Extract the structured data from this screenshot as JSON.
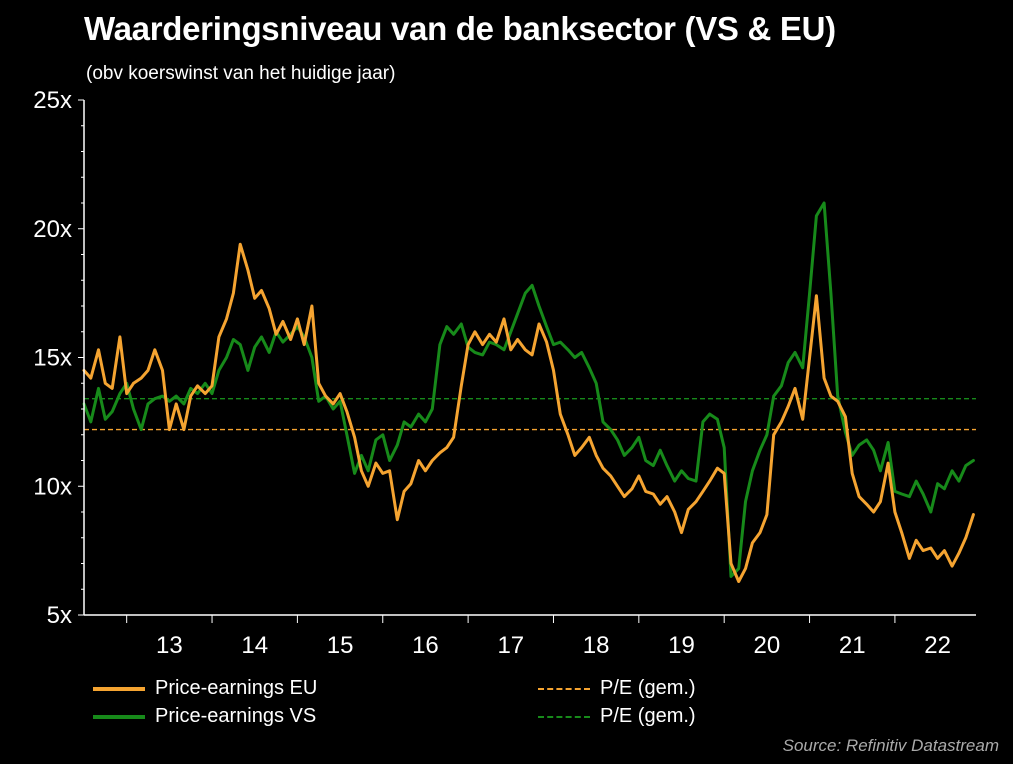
{
  "title": "Waarderingsniveau van de banksector (VS & EU)",
  "subtitle": "(obv koerswinst van het huidige jaar)",
  "source": "Source: Refinitiv Datastream",
  "colors": {
    "eu": "#f5a431",
    "vs": "#178a1a",
    "background": "#000000",
    "axis": "#ffffff"
  },
  "chart_data": {
    "type": "line",
    "title": "Waarderingsniveau van de banksector (VS & EU)",
    "subtitle": "(obv koerswinst van het huidige jaar)",
    "x_tick_labels": [
      "13",
      "14",
      "15",
      "16",
      "17",
      "18",
      "19",
      "20",
      "21",
      "22"
    ],
    "y_tick_labels": [
      "5x",
      "10x",
      "15x",
      "20x",
      "25x"
    ],
    "y_ticks": [
      5,
      10,
      15,
      20,
      25
    ],
    "xlim": [
      2012.5,
      2022.95
    ],
    "ylim": [
      5,
      25
    ],
    "grid": false,
    "legend_position": "bottom",
    "series": [
      {
        "name": "Price-earnings EU",
        "style": "solid",
        "color": "#f5a431",
        "x": [
          2012.5,
          2012.58,
          2012.67,
          2012.75,
          2012.83,
          2012.92,
          2013.0,
          2013.08,
          2013.17,
          2013.25,
          2013.33,
          2013.42,
          2013.5,
          2013.58,
          2013.67,
          2013.75,
          2013.83,
          2013.92,
          2014.0,
          2014.08,
          2014.17,
          2014.25,
          2014.33,
          2014.42,
          2014.5,
          2014.58,
          2014.67,
          2014.75,
          2014.83,
          2014.92,
          2015.0,
          2015.08,
          2015.17,
          2015.25,
          2015.33,
          2015.42,
          2015.5,
          2015.58,
          2015.67,
          2015.75,
          2015.83,
          2015.92,
          2016.0,
          2016.08,
          2016.17,
          2016.25,
          2016.33,
          2016.42,
          2016.5,
          2016.58,
          2016.67,
          2016.75,
          2016.83,
          2016.92,
          2017.0,
          2017.08,
          2017.17,
          2017.25,
          2017.33,
          2017.42,
          2017.5,
          2017.58,
          2017.67,
          2017.75,
          2017.83,
          2017.92,
          2018.0,
          2018.08,
          2018.17,
          2018.25,
          2018.33,
          2018.42,
          2018.5,
          2018.58,
          2018.67,
          2018.75,
          2018.83,
          2018.92,
          2019.0,
          2019.08,
          2019.17,
          2019.25,
          2019.33,
          2019.42,
          2019.5,
          2019.58,
          2019.67,
          2019.75,
          2019.83,
          2019.92,
          2020.0,
          2020.08,
          2020.17,
          2020.25,
          2020.33,
          2020.42,
          2020.5,
          2020.58,
          2020.67,
          2020.75,
          2020.83,
          2020.92,
          2021.0,
          2021.08,
          2021.17,
          2021.25,
          2021.33,
          2021.42,
          2021.5,
          2021.58,
          2021.67,
          2021.75,
          2021.83,
          2021.92,
          2022.0,
          2022.08,
          2022.17,
          2022.25,
          2022.33,
          2022.42,
          2022.5,
          2022.58,
          2022.67,
          2022.75,
          2022.83,
          2022.92
        ],
        "y": [
          14.5,
          14.2,
          15.3,
          14.0,
          13.8,
          15.8,
          13.6,
          14.0,
          14.2,
          14.5,
          15.3,
          14.5,
          12.2,
          13.2,
          12.2,
          13.5,
          13.9,
          13.6,
          13.9,
          15.8,
          16.5,
          17.5,
          19.4,
          18.4,
          17.3,
          17.6,
          16.9,
          15.9,
          16.4,
          15.7,
          16.5,
          15.5,
          17.0,
          14.0,
          13.5,
          13.2,
          13.6,
          12.9,
          11.9,
          10.6,
          10.0,
          10.9,
          10.5,
          10.6,
          8.7,
          9.8,
          10.1,
          11.0,
          10.6,
          11.0,
          11.3,
          11.5,
          11.9,
          13.9,
          15.5,
          16.0,
          15.5,
          15.9,
          15.6,
          16.5,
          15.3,
          15.7,
          15.3,
          15.1,
          16.3,
          15.6,
          14.5,
          12.8,
          12.0,
          11.2,
          11.5,
          11.9,
          11.2,
          10.7,
          10.4,
          10.0,
          9.6,
          9.9,
          10.4,
          9.8,
          9.7,
          9.3,
          9.6,
          9.0,
          8.2,
          9.1,
          9.4,
          9.8,
          10.2,
          10.7,
          10.5,
          7.0,
          6.3,
          6.8,
          7.8,
          8.2,
          8.9,
          12.0,
          12.5,
          13.1,
          13.8,
          12.6,
          15.0,
          17.4,
          14.2,
          13.5,
          13.3,
          12.7,
          10.5,
          9.6,
          9.3,
          9.0,
          9.4,
          10.9,
          9.0,
          8.2,
          7.2,
          7.9,
          7.5,
          7.6,
          7.2,
          7.5,
          6.9,
          7.4,
          8.0,
          8.9
        ]
      },
      {
        "name": "Price-earnings VS",
        "style": "solid",
        "color": "#178a1a",
        "x": [
          2012.5,
          2012.58,
          2012.67,
          2012.75,
          2012.83,
          2012.92,
          2013.0,
          2013.08,
          2013.17,
          2013.25,
          2013.33,
          2013.42,
          2013.5,
          2013.58,
          2013.67,
          2013.75,
          2013.83,
          2013.92,
          2014.0,
          2014.08,
          2014.17,
          2014.25,
          2014.33,
          2014.42,
          2014.5,
          2014.58,
          2014.67,
          2014.75,
          2014.83,
          2014.92,
          2015.0,
          2015.08,
          2015.17,
          2015.25,
          2015.33,
          2015.42,
          2015.5,
          2015.58,
          2015.67,
          2015.75,
          2015.83,
          2015.92,
          2016.0,
          2016.08,
          2016.17,
          2016.25,
          2016.33,
          2016.42,
          2016.5,
          2016.58,
          2016.67,
          2016.75,
          2016.83,
          2016.92,
          2017.0,
          2017.08,
          2017.17,
          2017.25,
          2017.33,
          2017.42,
          2017.5,
          2017.58,
          2017.67,
          2017.75,
          2017.83,
          2017.92,
          2018.0,
          2018.08,
          2018.17,
          2018.25,
          2018.33,
          2018.42,
          2018.5,
          2018.58,
          2018.67,
          2018.75,
          2018.83,
          2018.92,
          2019.0,
          2019.08,
          2019.17,
          2019.25,
          2019.33,
          2019.42,
          2019.5,
          2019.58,
          2019.67,
          2019.75,
          2019.83,
          2019.92,
          2020.0,
          2020.08,
          2020.17,
          2020.25,
          2020.33,
          2020.42,
          2020.5,
          2020.58,
          2020.67,
          2020.75,
          2020.83,
          2020.92,
          2021.0,
          2021.08,
          2021.17,
          2021.25,
          2021.33,
          2021.42,
          2021.5,
          2021.58,
          2021.67,
          2021.75,
          2021.83,
          2021.92,
          2022.0,
          2022.08,
          2022.17,
          2022.25,
          2022.33,
          2022.42,
          2022.5,
          2022.58,
          2022.67,
          2022.75,
          2022.83,
          2022.92
        ],
        "y": [
          13.2,
          12.5,
          13.8,
          12.6,
          12.9,
          13.6,
          14.0,
          13.0,
          12.2,
          13.2,
          13.4,
          13.5,
          13.3,
          13.5,
          13.2,
          13.8,
          13.6,
          14.0,
          13.6,
          14.5,
          15.0,
          15.7,
          15.5,
          14.5,
          15.4,
          15.8,
          15.2,
          16.0,
          15.6,
          15.9,
          16.2,
          15.8,
          15.0,
          13.3,
          13.5,
          13.0,
          13.3,
          12.0,
          10.5,
          11.2,
          10.6,
          11.8,
          12.0,
          11.0,
          11.6,
          12.5,
          12.3,
          12.8,
          12.5,
          13.0,
          15.5,
          16.2,
          15.9,
          16.3,
          15.4,
          15.2,
          15.1,
          15.6,
          15.5,
          15.3,
          16.0,
          16.7,
          17.5,
          17.8,
          17.0,
          16.2,
          15.5,
          15.6,
          15.3,
          15.0,
          15.2,
          14.6,
          14.0,
          12.5,
          12.2,
          11.8,
          11.2,
          11.5,
          11.9,
          11.0,
          10.8,
          11.4,
          10.8,
          10.2,
          10.6,
          10.3,
          10.2,
          12.5,
          12.8,
          12.6,
          11.5,
          6.5,
          6.8,
          9.4,
          10.6,
          11.4,
          12.0,
          13.5,
          13.9,
          14.8,
          15.2,
          14.6,
          17.5,
          20.5,
          21.0,
          17.5,
          13.5,
          12.1,
          11.2,
          11.6,
          11.8,
          11.4,
          10.6,
          11.7,
          9.8,
          9.7,
          9.6,
          10.2,
          9.7,
          9.0,
          10.1,
          9.9,
          10.6,
          10.2,
          10.8,
          11.0
        ]
      },
      {
        "name": "P/E (gem.)",
        "style": "dashed",
        "color": "#f5a431",
        "x": [
          2012.5,
          2022.95
        ],
        "y": [
          12.2,
          12.2
        ]
      },
      {
        "name": "P/E (gem.)",
        "style": "dashed",
        "color": "#178a1a",
        "x": [
          2012.5,
          2022.95
        ],
        "y": [
          13.4,
          13.4
        ]
      }
    ]
  }
}
